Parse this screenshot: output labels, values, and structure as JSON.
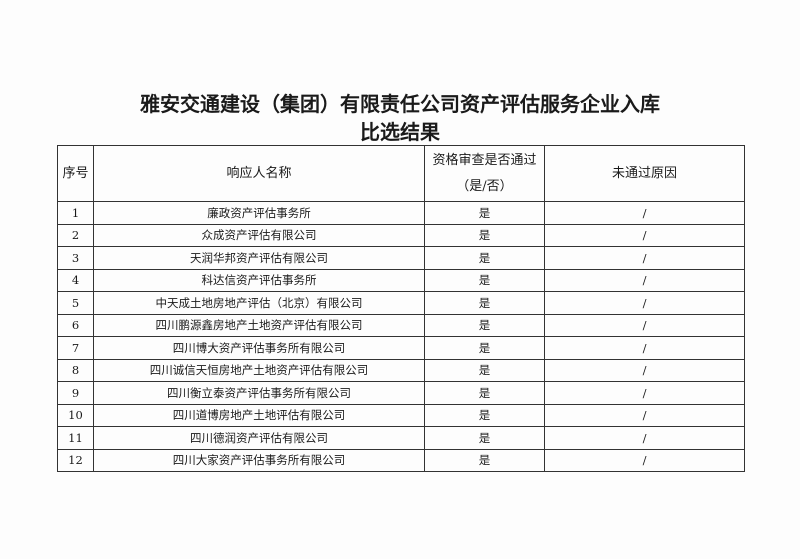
{
  "title_line1": "雅安交通建设（集团）有限责任公司资产评估服务企业入库",
  "title_line2": "比选结果",
  "headers": {
    "no": "序号",
    "name": "响应人名称",
    "passed_line1": "资格审查是否通过",
    "passed_line2": "（是/否）",
    "reason": "未通过原因"
  },
  "rows": [
    {
      "no": "1",
      "name": "廉政资产评估事务所",
      "passed": "是",
      "reason": "/"
    },
    {
      "no": "2",
      "name": "众成资产评估有限公司",
      "passed": "是",
      "reason": "/"
    },
    {
      "no": "3",
      "name": "天润华邦资产评估有限公司",
      "passed": "是",
      "reason": "/"
    },
    {
      "no": "4",
      "name": "科达信资产评估事务所",
      "passed": "是",
      "reason": "/"
    },
    {
      "no": "5",
      "name": "中天成土地房地产评估（北京）有限公司",
      "passed": "是",
      "reason": "/"
    },
    {
      "no": "6",
      "name": "四川鹏源鑫房地产土地资产评估有限公司",
      "passed": "是",
      "reason": "/"
    },
    {
      "no": "7",
      "name": "四川博大资产评估事务所有限公司",
      "passed": "是",
      "reason": "/"
    },
    {
      "no": "8",
      "name": "四川诚信天恒房地产土地资产评估有限公司",
      "passed": "是",
      "reason": "/"
    },
    {
      "no": "9",
      "name": "四川衡立泰资产评估事务所有限公司",
      "passed": "是",
      "reason": "/"
    },
    {
      "no": "10",
      "name": "四川道博房地产土地评估有限公司",
      "passed": "是",
      "reason": "/"
    },
    {
      "no": "11",
      "name": "四川德润资产评估有限公司",
      "passed": "是",
      "reason": "/"
    },
    {
      "no": "12",
      "name": "四川大家资产评估事务所有限公司",
      "passed": "是",
      "reason": "/"
    }
  ]
}
